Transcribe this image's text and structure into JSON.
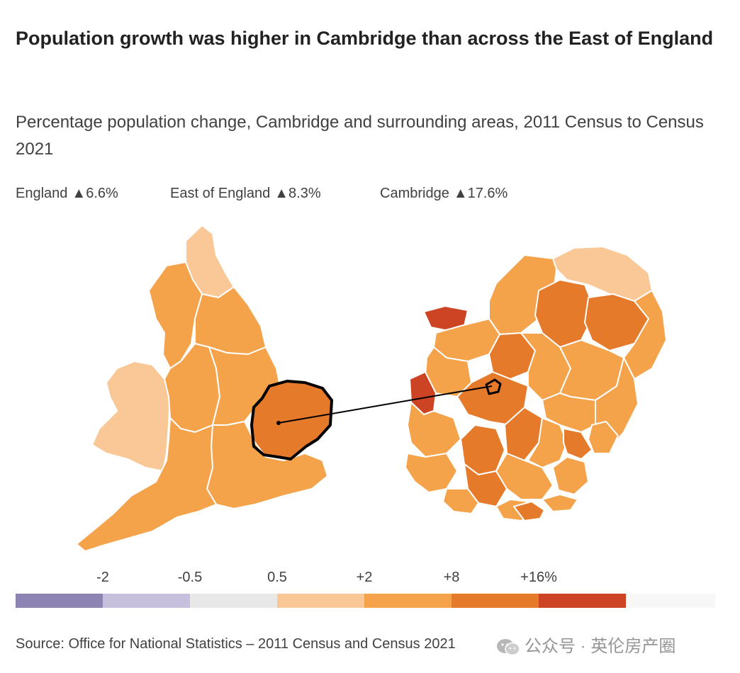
{
  "title": "Population growth was higher in Cambridge than across the East of England",
  "subtitle": "Percentage population change, Cambridge and surrounding areas, 2011 Census to Census 2021",
  "stats": [
    {
      "label": "England",
      "value": "▲6.6%"
    },
    {
      "label": "East of England",
      "value": "▲8.3%"
    },
    {
      "label": "Cambridge",
      "value": "▲17.6%"
    }
  ],
  "legend": {
    "ticks": [
      "-2",
      "-0.5",
      "0.5",
      "+2",
      "+8",
      "+16%"
    ],
    "colors": [
      "#8e84b4",
      "#c6c0dc",
      "#e8e8e8",
      "#f9c896",
      "#f5a34a",
      "#e67a2b",
      "#cc4423",
      "#f7f7f7"
    ]
  },
  "map_colors": {
    "light": "#f9c896",
    "mid": "#f5a34a",
    "dark": "#e67a2b",
    "darkest": "#cc4423",
    "outline": "#000000",
    "border": "#ffffff"
  },
  "source": "Source: Office for National Statistics – 2011 Census and Census 2021",
  "watermark": "公众号 · 英伦房产圈"
}
